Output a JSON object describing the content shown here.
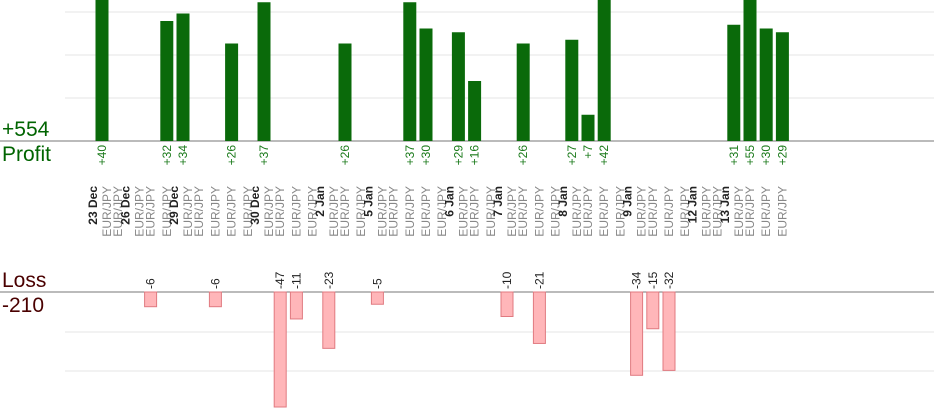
{
  "summary": {
    "profit_value": "+554",
    "profit_label": "Profit",
    "loss_label": "Loss",
    "loss_value": "-210"
  },
  "colors": {
    "profit_bar": "#0a6a0a",
    "profit_label": "#1a7a1a",
    "loss_bar": "#ffb6b9",
    "loss_bar_border": "#e07a80",
    "loss_label": "#222222",
    "grid": "#e6e6e6",
    "axis": "#777777",
    "date_label": "#222222",
    "pair_label": "#888888"
  },
  "chart_data": {
    "type": "bar",
    "profit_range": [
      0,
      37
    ],
    "loss_range": [
      -47,
      0
    ],
    "columns": [
      {
        "date": "23 Dec",
        "pair": "EUR/JPY",
        "profit": 40
      },
      {
        "pair": "EUR/JPY",
        "profit": null
      },
      {
        "date": "26 Dec",
        "pair": "EUR/JPY",
        "profit": null
      },
      {
        "pair": "EUR/JPY",
        "loss": -6
      },
      {
        "pair": "EUR/JPY",
        "profit": 32
      },
      {
        "date": "29 Dec",
        "pair": "EUR/JPY",
        "profit": 34
      },
      {
        "pair": "EUR/JPY",
        "profit": null
      },
      {
        "pair": "EUR/JPY",
        "loss": -6
      },
      {
        "pair": "EUR/JPY",
        "profit": 26
      },
      {
        "pair": "EUR/JPY",
        "profit": null
      },
      {
        "date": "30 Dec",
        "pair": "EUR/JPY",
        "profit": 37
      },
      {
        "pair": "EUR/JPY",
        "loss": -47
      },
      {
        "pair": "EUR/JPY",
        "loss": -11
      },
      {
        "pair": "EUR/JPY",
        "profit": null
      },
      {
        "date": "2 Jan",
        "pair": "EUR/JPY",
        "loss": -23
      },
      {
        "pair": "EUR/JPY",
        "profit": 26
      },
      {
        "pair": "EUR/JPY",
        "profit": null
      },
      {
        "date": "5 Jan",
        "pair": "EUR/JPY",
        "loss": -5
      },
      {
        "pair": "EUR/JPY",
        "profit": null
      },
      {
        "pair": "EUR/JPY",
        "profit": 37
      },
      {
        "pair": "EUR/JPY",
        "profit": 30
      },
      {
        "pair": "EUR/JPY",
        "profit": null
      },
      {
        "date": "6 Jan",
        "pair": "EUR/JPY",
        "profit": 29
      },
      {
        "pair": "EUR/JPY",
        "profit": 16
      },
      {
        "pair": "EUR/JPY",
        "profit": null
      },
      {
        "date": "7 Jan",
        "pair": "EUR/JPY",
        "loss": -10
      },
      {
        "pair": "EUR/JPY",
        "profit": 26
      },
      {
        "pair": "EUR/JPY",
        "loss": -21
      },
      {
        "pair": "EUR/JPY",
        "profit": null
      },
      {
        "date": "8 Jan",
        "pair": "EUR/JPY",
        "profit": 27
      },
      {
        "pair": "EUR/JPY",
        "profit": 7
      },
      {
        "pair": "EUR/JPY",
        "profit": 42
      },
      {
        "pair": "EUR/JPY",
        "profit": null
      },
      {
        "date": "9 Jan",
        "pair": "EUR/JPY",
        "loss": -34
      },
      {
        "pair": "EUR/JPY",
        "loss": -15
      },
      {
        "pair": "EUR/JPY",
        "loss": -32
      },
      {
        "pair": "EUR/JPY",
        "profit": null
      },
      {
        "date": "12 Jan",
        "pair": "EUR/JPY",
        "profit": null
      },
      {
        "pair": "EUR/JPY",
        "profit": null
      },
      {
        "date": "13 Jan",
        "pair": "EUR/JPY",
        "profit": 31
      },
      {
        "pair": "EUR/JPY",
        "profit": 55
      },
      {
        "pair": "EUR/JPY",
        "profit": 30
      },
      {
        "pair": "EUR/JPY",
        "profit": 29
      }
    ]
  }
}
